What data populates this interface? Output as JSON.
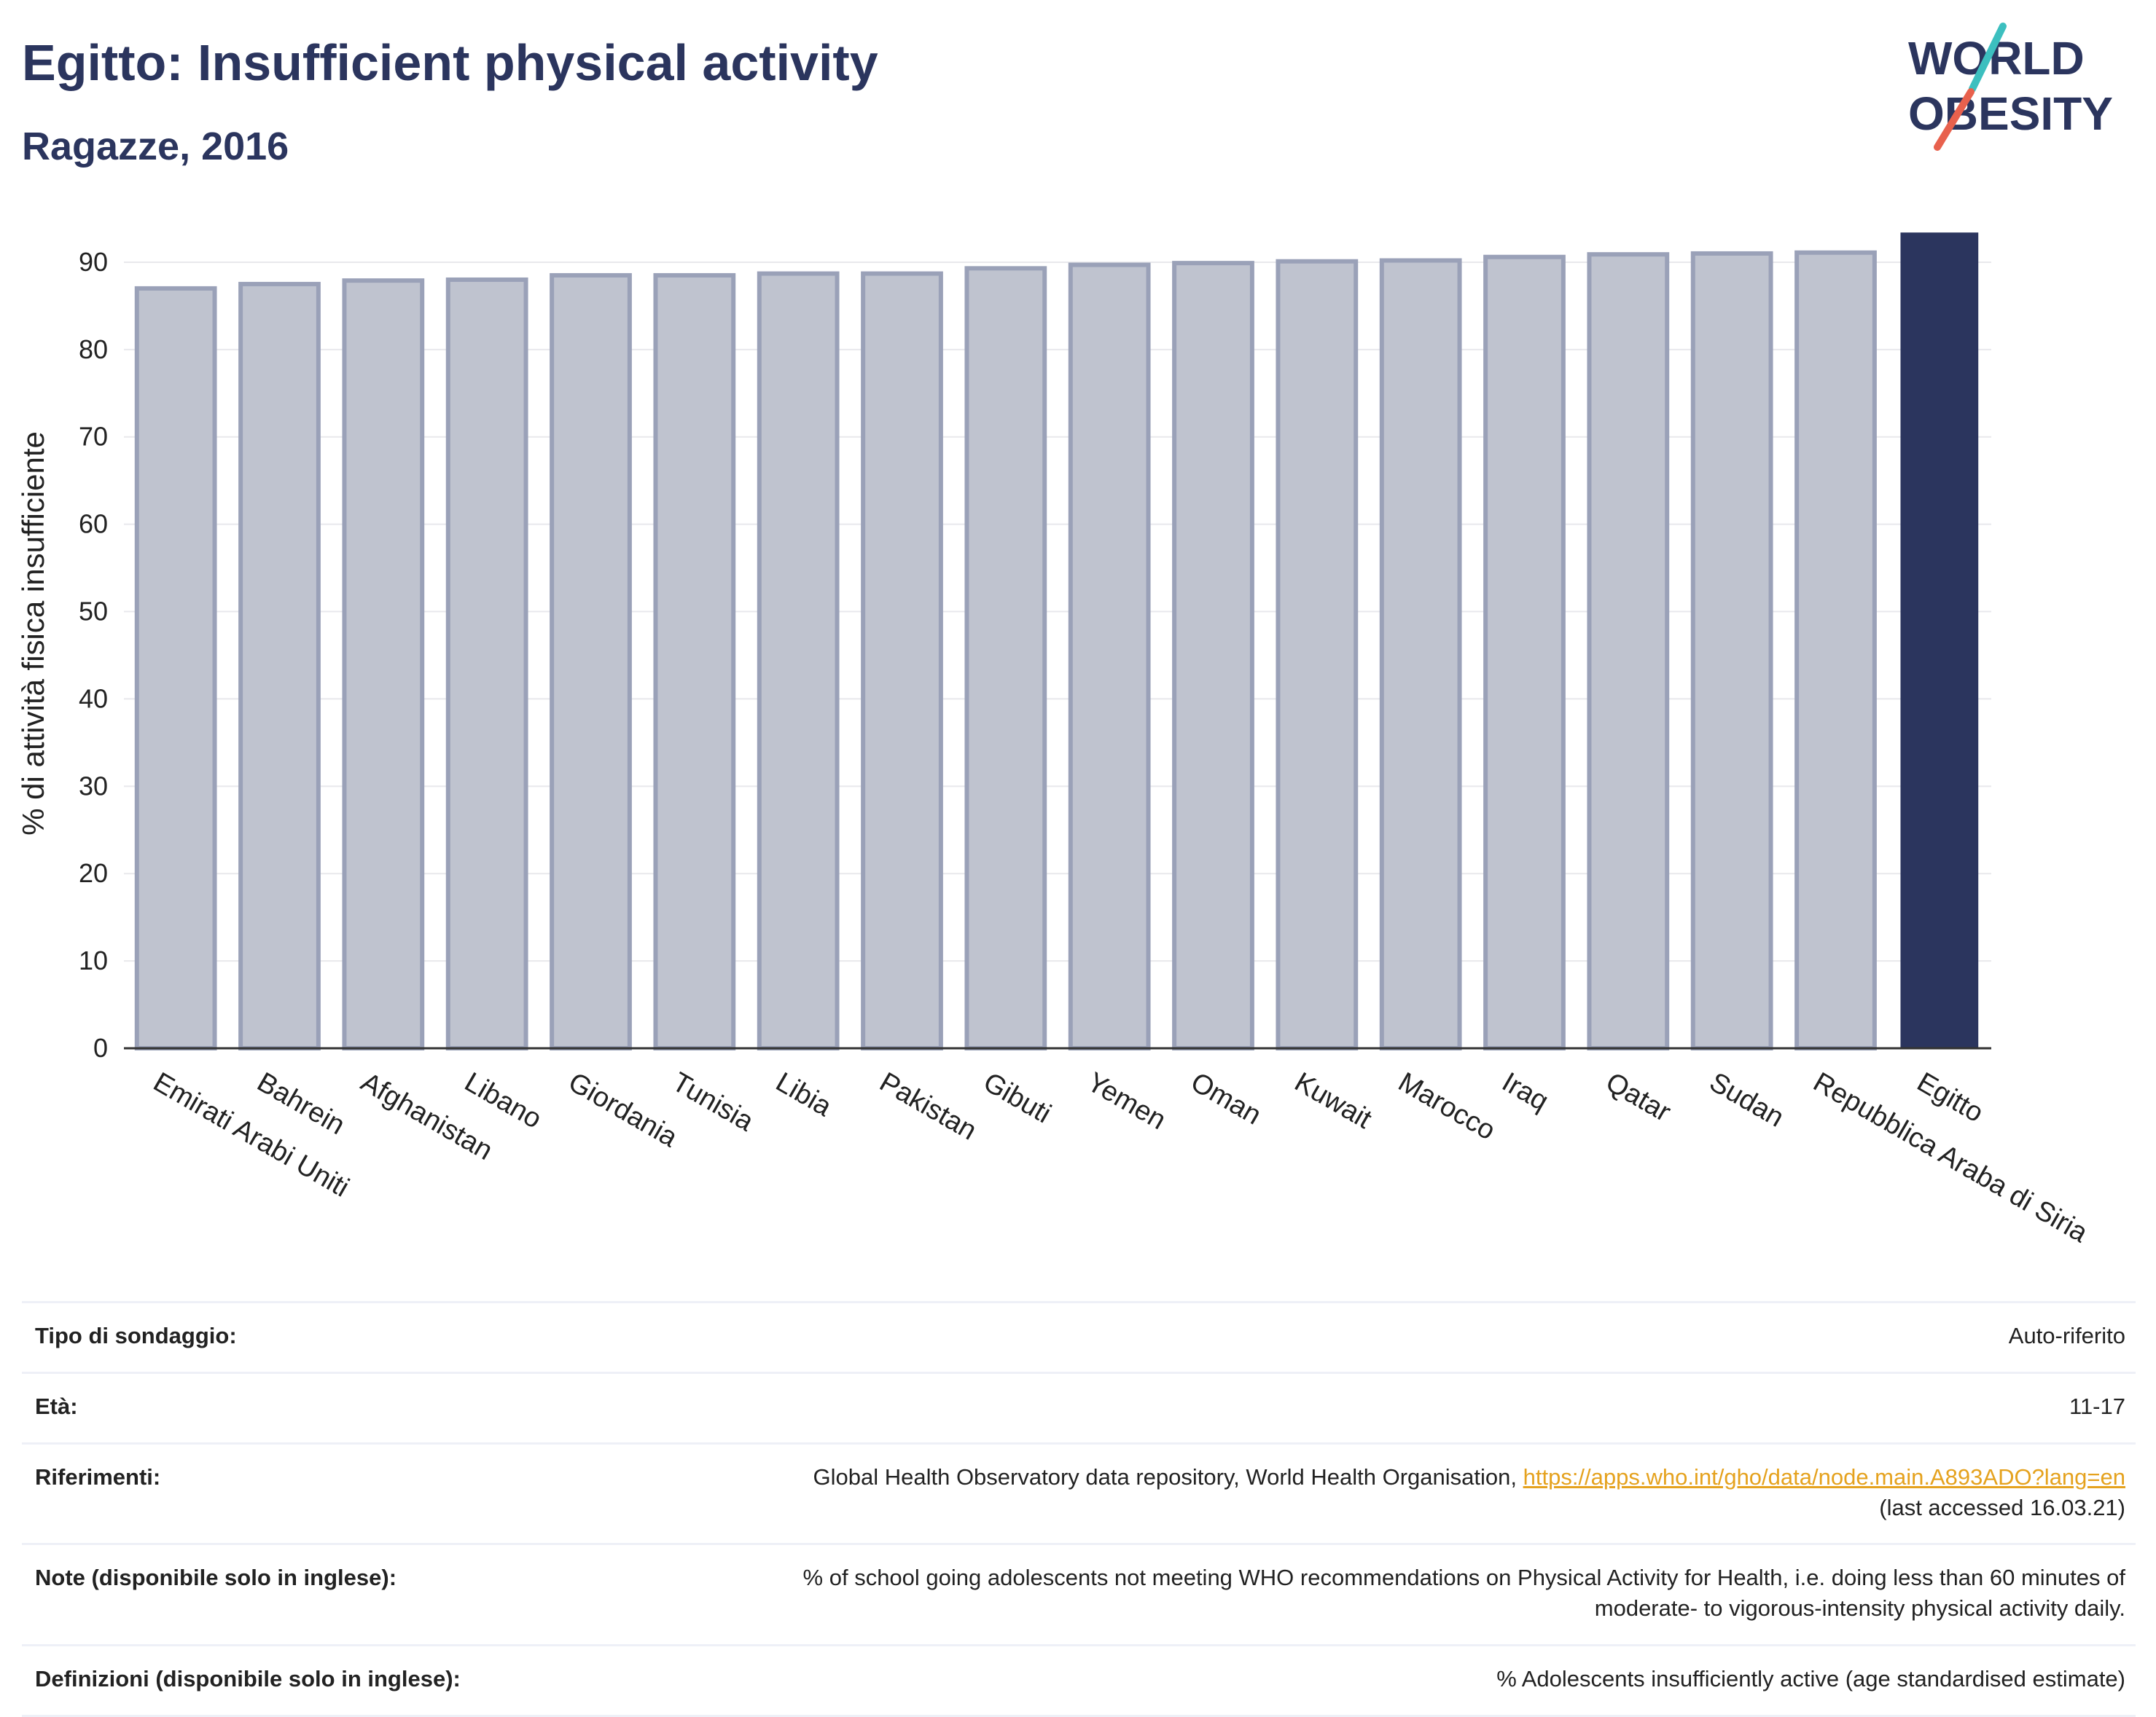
{
  "header": {
    "title": "Egitto: Insufficient physical activity",
    "subtitle": "Ragazze, 2016"
  },
  "logo": {
    "line1": "WORLD",
    "line2": "OBESITY",
    "accent_colors": [
      "#3cbfbf",
      "#e8614d"
    ]
  },
  "colors": {
    "bar": "#bfc3cf",
    "bar_border": "#9aa1b8",
    "highlight": "#2b355e",
    "grid": "#e8e8ec"
  },
  "chart_data": {
    "type": "bar",
    "title": "",
    "xlabel": "",
    "ylabel": "% di attività fisica insufficiente",
    "ylim": [
      0,
      95
    ],
    "yticks": [
      0,
      10,
      20,
      30,
      40,
      50,
      60,
      70,
      80,
      90
    ],
    "grid": true,
    "highlight": "Egitto",
    "categories": [
      "Emirati Arabi Uniti",
      "Bahrein",
      "Afghanistan",
      "Libano",
      "Giordania",
      "Tunisia",
      "Libia",
      "Pakistan",
      "Gibuti",
      "Yemen",
      "Oman",
      "Kuwait",
      "Marocco",
      "Iraq",
      "Qatar",
      "Sudan",
      "Repubblica Araba di Siria",
      "Egitto"
    ],
    "values": [
      87.0,
      87.5,
      87.9,
      88.0,
      88.5,
      88.5,
      88.7,
      88.7,
      89.3,
      89.7,
      89.9,
      90.1,
      90.2,
      90.6,
      90.9,
      91.0,
      91.1,
      93.4
    ]
  },
  "info": {
    "survey_type": {
      "label": "Tipo di sondaggio:",
      "value": "Auto-riferito"
    },
    "age": {
      "label": "Età:",
      "value": "11-17"
    },
    "references": {
      "label": "Riferimenti:",
      "text": "Global Health Observatory data repository, World Health Organisation,",
      "link": "https://apps.who.int/gho/data/node.main.A893ADO?lang=en",
      "accessed": "(last accessed 16.03.21)"
    },
    "notes": {
      "label": "Note (disponibile solo in inglese):",
      "line1": "% of school going adolescents not meeting WHO recommendations on Physical Activity for Health, i.e. doing less than 60 minutes of",
      "line2": "moderate- to vigorous-intensity physical activity daily."
    },
    "definitions": {
      "label": "Definizioni (disponibile solo in inglese):",
      "value": "% Adolescents insufficiently active (age standardised estimate)"
    }
  }
}
